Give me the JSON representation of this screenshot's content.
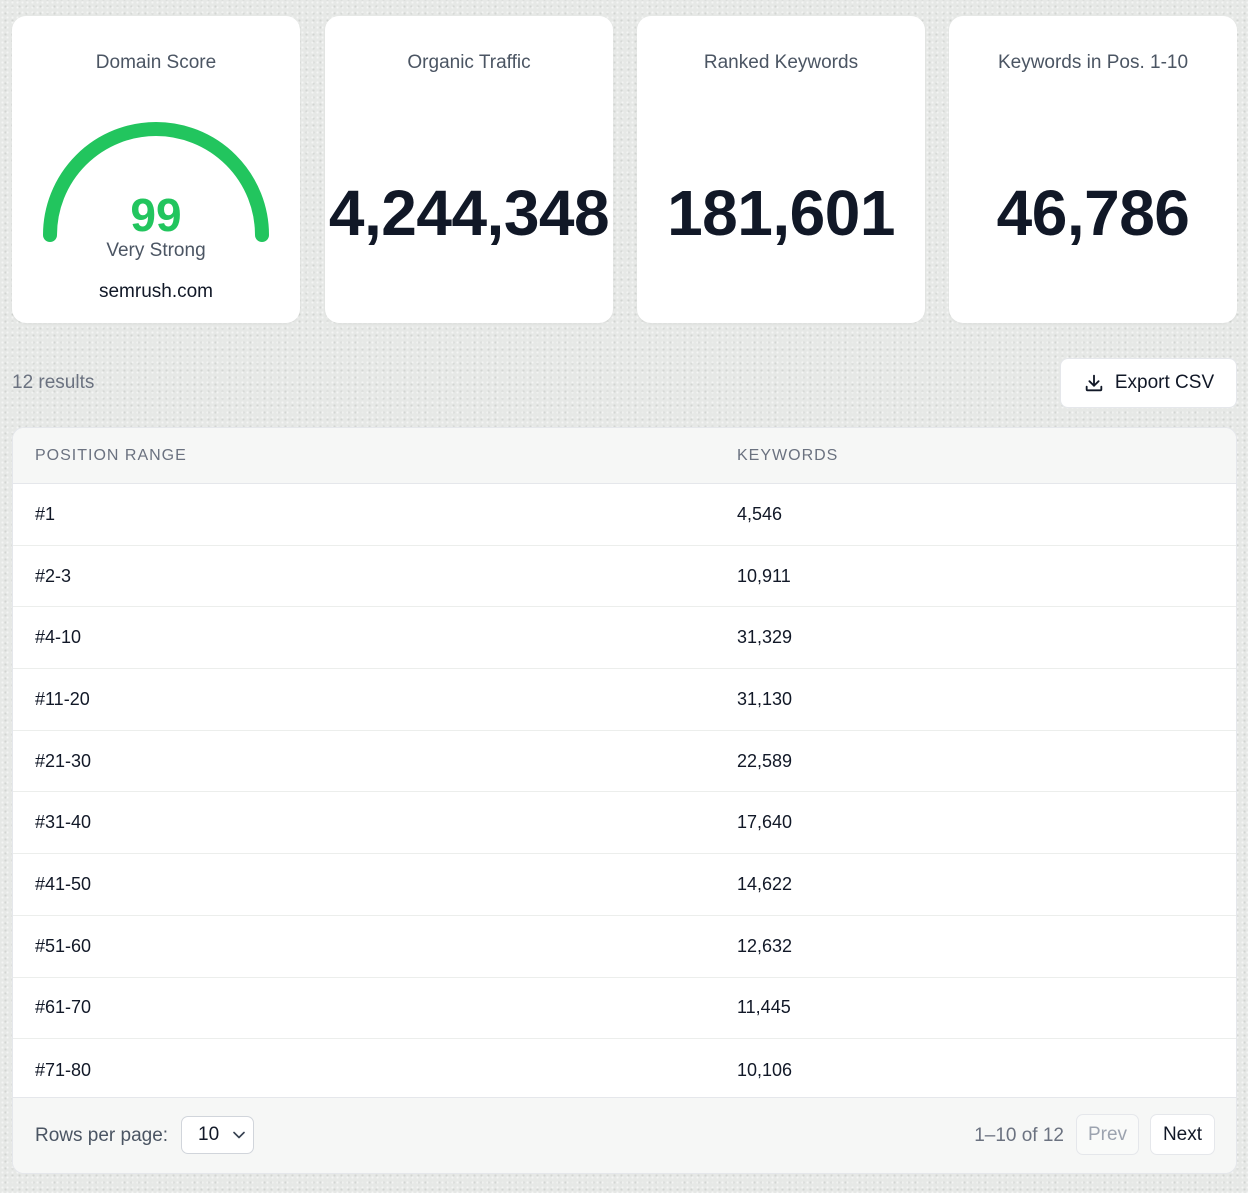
{
  "cards": {
    "domain_score": {
      "title": "Domain Score",
      "score": "99",
      "score_value": 99,
      "rating": "Very Strong",
      "domain": "semrush.com",
      "color": "#22c55e"
    },
    "organic_traffic": {
      "title": "Organic Traffic",
      "value": "4,244,348"
    },
    "ranked_keywords": {
      "title": "Ranked Keywords",
      "value": "181,601"
    },
    "keywords_top10": {
      "title": "Keywords in Pos. 1-10",
      "value": "46,786"
    }
  },
  "results": {
    "count_label": "12 results",
    "export_label": "Export CSV",
    "export_icon": "download-icon"
  },
  "table": {
    "headers": [
      "POSITION RANGE",
      "KEYWORDS"
    ],
    "rows": [
      [
        "#1",
        "4,546"
      ],
      [
        "#2-3",
        "10,911"
      ],
      [
        "#4-10",
        "31,329"
      ],
      [
        "#11-20",
        "31,130"
      ],
      [
        "#21-30",
        "22,589"
      ],
      [
        "#31-40",
        "17,640"
      ],
      [
        "#41-50",
        "14,622"
      ],
      [
        "#51-60",
        "12,632"
      ],
      [
        "#61-70",
        "11,445"
      ],
      [
        "#71-80",
        "10,106"
      ]
    ]
  },
  "pagination": {
    "rows_per_page_label": "Rows per page:",
    "rows_per_page_value": "10",
    "range_label": "1–10 of 12",
    "prev_label": "Prev",
    "next_label": "Next"
  }
}
